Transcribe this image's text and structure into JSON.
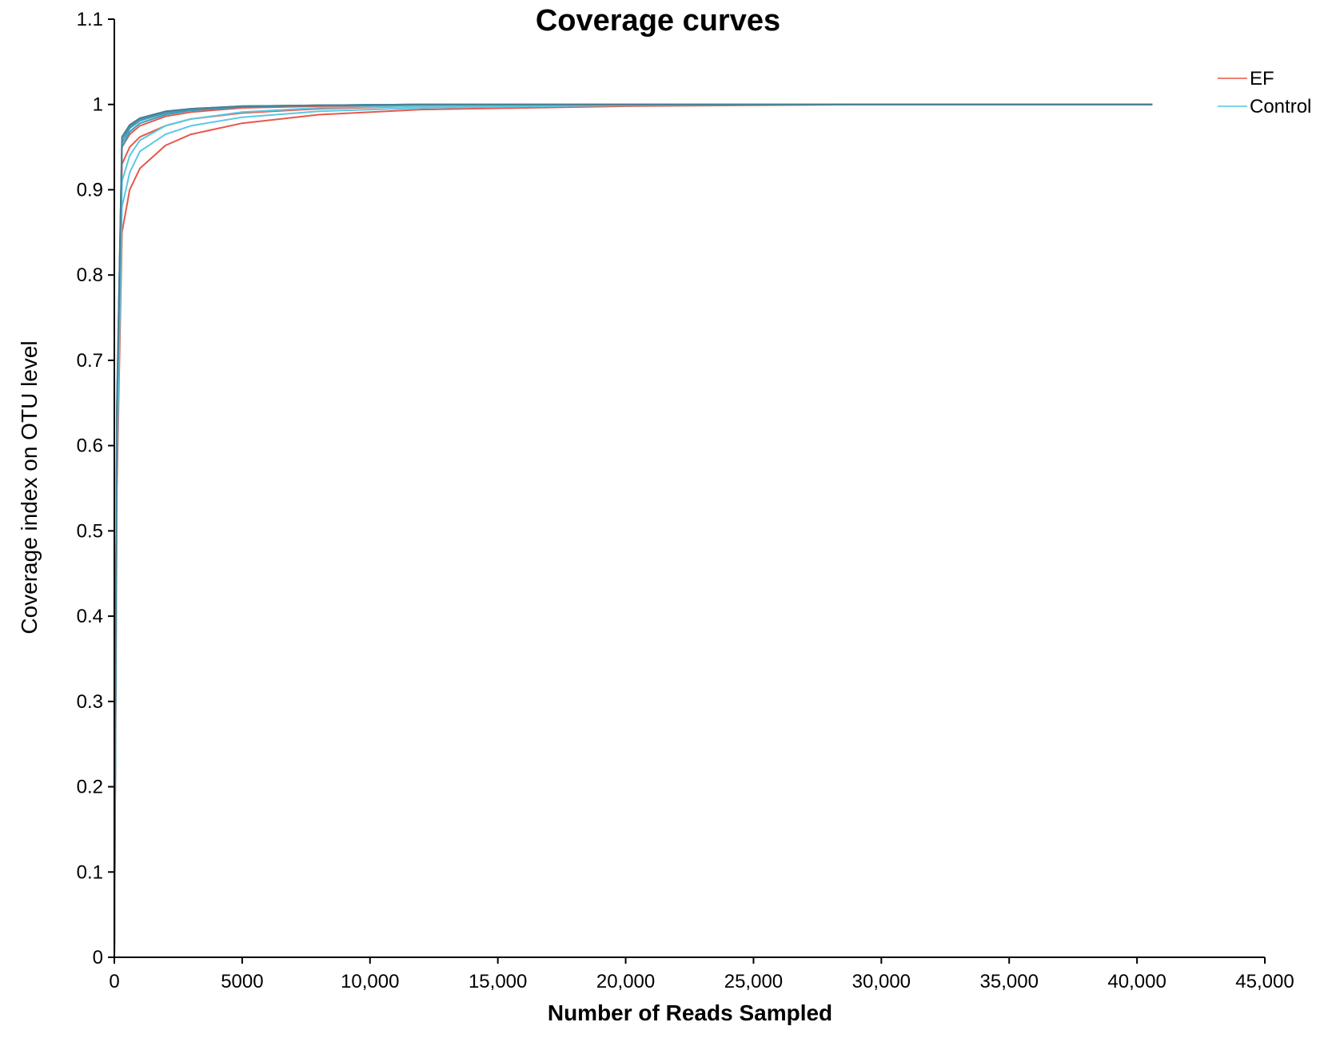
{
  "chart_data": {
    "type": "line",
    "title": "Coverage curves",
    "xlabel": "Number of Reads Sampled",
    "ylabel": "Coverage index on OTU level",
    "xlim": [
      0,
      45000
    ],
    "ylim": [
      0,
      1.1
    ],
    "x_ticks": [
      "0",
      "5000",
      "10,000",
      "15,000",
      "20,000",
      "25,000",
      "30,000",
      "35,000",
      "40,000",
      "45,000"
    ],
    "y_ticks": [
      "0",
      "0.1",
      "0.2",
      "0.3",
      "0.4",
      "0.5",
      "0.6",
      "0.7",
      "0.8",
      "0.9",
      "1",
      "1.1"
    ],
    "grid": false,
    "legend_position": "top-right",
    "legend": [
      {
        "label": "EF",
        "color": "#f07f73"
      },
      {
        "label": "Control",
        "color": "#7fd3e8"
      }
    ],
    "series": [
      {
        "group": "EF",
        "color": "#e8574a",
        "x": [
          0,
          100,
          300,
          600,
          1000,
          2000,
          3000,
          5000,
          8000,
          12000,
          20000,
          30000,
          40600
        ],
        "y": [
          0,
          0.55,
          0.85,
          0.9,
          0.925,
          0.952,
          0.965,
          0.978,
          0.988,
          0.994,
          0.998,
          1.0,
          1.0
        ]
      },
      {
        "group": "EF",
        "color": "#e8574a",
        "x": [
          0,
          100,
          300,
          600,
          1000,
          2000,
          3000,
          5000,
          8000,
          12000,
          20000,
          30000,
          40600
        ],
        "y": [
          0,
          0.6,
          0.93,
          0.95,
          0.962,
          0.975,
          0.983,
          0.99,
          0.995,
          0.998,
          0.999,
          1.0,
          1.0
        ]
      },
      {
        "group": "EF",
        "color": "#e8574a",
        "x": [
          0,
          100,
          300,
          600,
          1000,
          2000,
          3000,
          5000,
          8000,
          12000,
          20000,
          30000,
          40600
        ],
        "y": [
          0,
          0.62,
          0.95,
          0.965,
          0.975,
          0.986,
          0.991,
          0.996,
          0.998,
          0.999,
          1.0,
          1.0,
          1.0
        ]
      },
      {
        "group": "Control",
        "color": "#5bc8e3",
        "x": [
          0,
          100,
          300,
          600,
          1000,
          2000,
          3000,
          5000,
          8000,
          12000,
          20000,
          30000,
          40600
        ],
        "y": [
          0,
          0.58,
          0.88,
          0.92,
          0.945,
          0.965,
          0.975,
          0.985,
          0.992,
          0.996,
          0.999,
          1.0,
          1.0
        ]
      },
      {
        "group": "Control",
        "color": "#5bc8e3",
        "x": [
          0,
          100,
          300,
          600,
          1000,
          2000,
          3000,
          5000,
          8000,
          12000,
          20000,
          30000,
          40600
        ],
        "y": [
          0,
          0.6,
          0.91,
          0.94,
          0.958,
          0.975,
          0.983,
          0.991,
          0.996,
          0.998,
          1.0,
          1.0,
          1.0
        ]
      },
      {
        "group": "Control",
        "color": "#3a9ebd",
        "x": [
          0,
          100,
          300,
          600,
          1000,
          2000,
          3000,
          5000,
          8000,
          12000,
          20000,
          30000,
          40600
        ],
        "y": [
          0,
          0.63,
          0.95,
          0.968,
          0.978,
          0.988,
          0.993,
          0.997,
          0.999,
          1.0,
          1.0,
          1.0,
          1.0
        ]
      },
      {
        "group": "Control",
        "color": "#3a9ebd",
        "x": [
          0,
          100,
          300,
          600,
          1000,
          2000,
          3000,
          5000,
          8000,
          12000,
          20000,
          30000,
          40600
        ],
        "y": [
          0,
          0.64,
          0.955,
          0.972,
          0.981,
          0.99,
          0.994,
          0.998,
          0.999,
          1.0,
          1.0,
          1.0,
          1.0
        ]
      },
      {
        "group": "Control",
        "color": "#5a8fa3",
        "x": [
          0,
          100,
          300,
          600,
          1000,
          2000,
          3000,
          5000,
          8000,
          12000,
          20000,
          30000,
          40600
        ],
        "y": [
          0,
          0.64,
          0.96,
          0.974,
          0.983,
          0.991,
          0.995,
          0.998,
          0.999,
          1.0,
          1.0,
          1.0,
          1.0
        ]
      },
      {
        "group": "Control",
        "color": "#4a7f93",
        "x": [
          0,
          100,
          300,
          600,
          1000,
          2000,
          3000,
          5000,
          8000,
          12000,
          20000,
          30000,
          40600
        ],
        "y": [
          0,
          0.65,
          0.962,
          0.976,
          0.984,
          0.992,
          0.995,
          0.998,
          0.999,
          1.0,
          1.0,
          1.0,
          1.0
        ]
      }
    ]
  }
}
